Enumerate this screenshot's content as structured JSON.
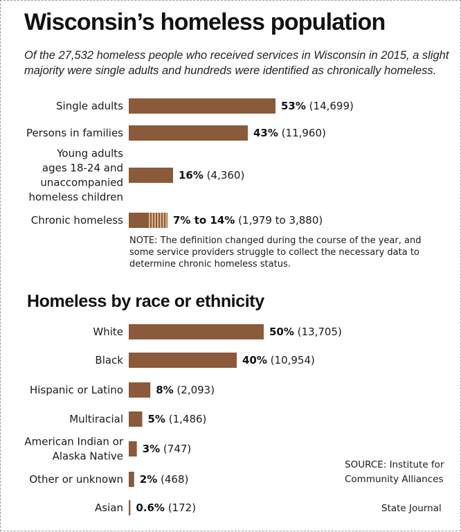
{
  "title": "Wisconsin’s homeless population",
  "subtitle": "Of the 27,532 homeless people who received services in Wisconsin in 2015, a slight majority were single adults and hundreds were identified as chronically homeless.",
  "colors": {
    "bar": "#8a5a3a",
    "hatch_light": "#d9b48f"
  },
  "chart_data": [
    {
      "type": "bar",
      "orientation": "horizontal",
      "title": "",
      "categories": [
        [
          "Single adults"
        ],
        [
          "Persons in families"
        ],
        [
          "Young adults",
          "ages 18-24 and",
          "unaccompanied",
          "homeless children"
        ],
        [
          "Chronic homeless"
        ]
      ],
      "values": [
        53,
        43,
        16,
        7
      ],
      "range_max": [
        null,
        null,
        null,
        14
      ],
      "percent_labels": [
        "53%",
        "43%",
        "16%",
        "7% to 14%"
      ],
      "count_labels": [
        "(14,699)",
        "(11,960)",
        "(4,360)",
        "(1,979 to 3,880)"
      ],
      "unit": "%",
      "note": "NOTE: The definition changed during the course of the year, and some service providers struggle to collect the necessary data to determine chronic homeless status."
    },
    {
      "type": "bar",
      "orientation": "horizontal",
      "title": "Homeless by race or ethnicity",
      "categories": [
        [
          "White"
        ],
        [
          "Black"
        ],
        [
          "Hispanic or Latino"
        ],
        [
          "Multiracial"
        ],
        [
          "American Indian or",
          "Alaska Native"
        ],
        [
          "Other or unknown"
        ],
        [
          "Asian"
        ]
      ],
      "values": [
        50,
        40,
        8,
        5,
        3,
        2,
        0.6
      ],
      "percent_labels": [
        "50%",
        "40%",
        "8%",
        "5%",
        "3%",
        "2%",
        "0.6%"
      ],
      "count_labels": [
        "(13,705)",
        "(10,954)",
        "(2,093)",
        "(1,486)",
        "(747)",
        "(468)",
        "(172)"
      ],
      "unit": "%"
    }
  ],
  "source": "SOURCE: Institute for Community Alliances",
  "credit": "State Journal"
}
